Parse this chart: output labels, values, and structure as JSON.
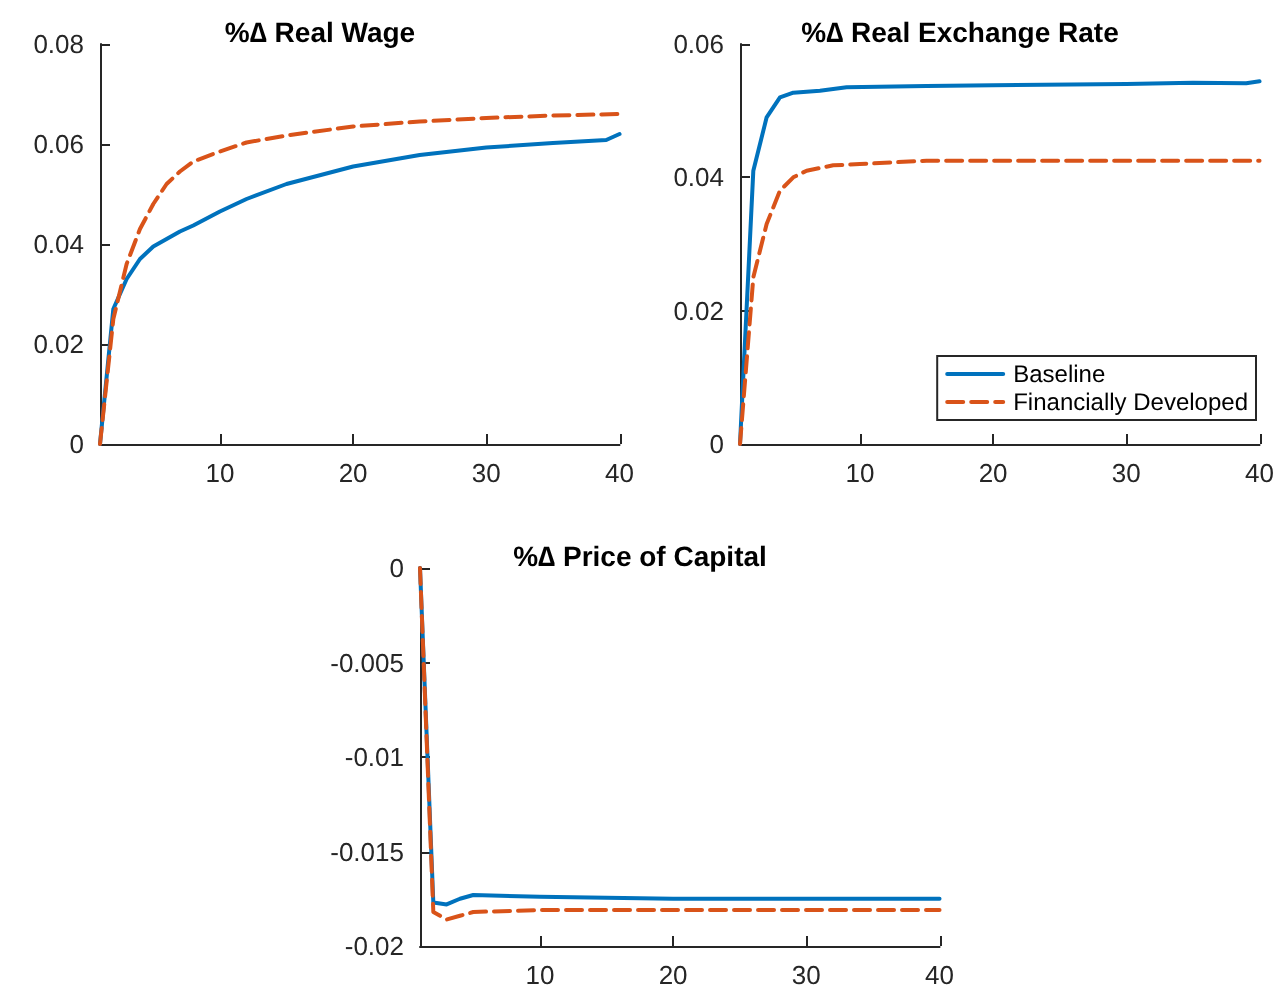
{
  "chart_data": [
    {
      "type": "line",
      "title": "%∆ Real Wage",
      "xlim": [
        1,
        40
      ],
      "xticks": [
        10,
        20,
        30,
        40
      ],
      "ylim": [
        0,
        0.08
      ],
      "yticks": [
        0,
        0.02,
        0.04,
        0.06,
        0.08
      ],
      "legend": false,
      "series": [
        {
          "color": "#0072bd",
          "line_style": "solid",
          "x": [
            1,
            2,
            3,
            4,
            5,
            6,
            7,
            8,
            10,
            12,
            15,
            20,
            25,
            30,
            35,
            39,
            40
          ],
          "values": [
            0,
            0.027,
            0.033,
            0.037,
            0.0395,
            0.041,
            0.0425,
            0.0437,
            0.0465,
            0.049,
            0.052,
            0.0555,
            0.0578,
            0.0593,
            0.0602,
            0.0608,
            0.062
          ]
        },
        {
          "color": "#d95319",
          "line_style": "dashed",
          "x": [
            1,
            2,
            3,
            4,
            5,
            6,
            7,
            8,
            10,
            12,
            15,
            20,
            25,
            30,
            35,
            40
          ],
          "values": [
            0,
            0.025,
            0.036,
            0.043,
            0.048,
            0.052,
            0.0545,
            0.0565,
            0.0585,
            0.0603,
            0.0617,
            0.0635,
            0.0645,
            0.0652,
            0.0657,
            0.066
          ]
        }
      ]
    },
    {
      "type": "line",
      "title": "%∆ Real Exchange Rate",
      "xlim": [
        1,
        40
      ],
      "xticks": [
        10,
        20,
        30,
        40
      ],
      "ylim": [
        0,
        0.06
      ],
      "yticks": [
        0,
        0.02,
        0.04,
        0.06
      ],
      "legend": "bottom right",
      "series": [
        {
          "name": "Baseline",
          "color": "#0072bd",
          "line_style": "solid",
          "x": [
            1,
            2,
            3,
            4,
            5,
            7,
            9,
            15,
            20,
            30,
            35,
            39,
            40
          ],
          "values": [
            0,
            0.041,
            0.049,
            0.052,
            0.0527,
            0.053,
            0.0535,
            0.0537,
            0.0538,
            0.054,
            0.0542,
            0.0541,
            0.0544
          ]
        },
        {
          "name": "Financially Developed",
          "color": "#d95319",
          "line_style": "dashed",
          "x": [
            1,
            2,
            3,
            4,
            5,
            6,
            8,
            10,
            15,
            20,
            40
          ],
          "values": [
            0,
            0.025,
            0.033,
            0.038,
            0.04,
            0.041,
            0.0418,
            0.042,
            0.0425,
            0.0425,
            0.0425
          ]
        }
      ]
    },
    {
      "type": "line",
      "title": "%∆ Price of Capital",
      "xlim": [
        1,
        40
      ],
      "xticks": [
        10,
        20,
        30,
        40
      ],
      "ylim": [
        -0.02,
        0
      ],
      "yticks": [
        -0.02,
        -0.015,
        -0.01,
        -0.005,
        0
      ],
      "legend": false,
      "series": [
        {
          "color": "#0072bd",
          "line_style": "solid",
          "x": [
            1,
            2,
            3,
            4,
            5,
            10,
            20,
            40
          ],
          "values": [
            0,
            -0.0177,
            -0.0178,
            -0.0175,
            -0.0173,
            -0.0174,
            -0.0175,
            -0.0175
          ]
        },
        {
          "color": "#d95319",
          "line_style": "dashed",
          "x": [
            1,
            2,
            3,
            4,
            5,
            10,
            40
          ],
          "values": [
            0,
            -0.0182,
            -0.0186,
            -0.0184,
            -0.0182,
            -0.0181,
            -0.0181
          ]
        }
      ]
    }
  ]
}
